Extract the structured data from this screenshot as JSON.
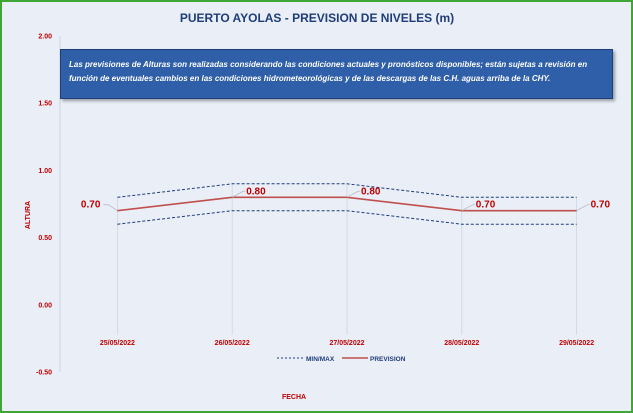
{
  "chart_data": {
    "type": "line",
    "title": "PUERTO AYOLAS - PREVISION DE NIVELES (m)",
    "xlabel": "FECHA",
    "ylabel": "ALTURA",
    "categories": [
      "25/05/2022",
      "26/05/2022",
      "27/05/2022",
      "28/05/2022",
      "29/05/2022"
    ],
    "ylim": [
      -0.5,
      2.0
    ],
    "yticks": [
      "2.00",
      "1.50",
      "1.00",
      "0.50",
      "0.00",
      "-0.50"
    ],
    "series": [
      {
        "name": "PREVISION",
        "values": [
          0.7,
          0.8,
          0.8,
          0.7,
          0.7
        ],
        "labels": [
          "0.70",
          "0.80",
          "0.80",
          "0.70",
          "0.70"
        ],
        "color": "#c0504d",
        "style": "solid"
      },
      {
        "name": "MIN/MAX",
        "role": "max",
        "values": [
          0.8,
          0.9,
          0.9,
          0.8,
          0.8
        ],
        "color": "#1f3d7a",
        "style": "dashed"
      },
      {
        "name": "MIN/MAX",
        "role": "min",
        "values": [
          0.6,
          0.7,
          0.7,
          0.6,
          0.6
        ],
        "color": "#1f3d7a",
        "style": "dashed"
      }
    ],
    "legend": {
      "position": "bottom",
      "entries": [
        "MIN/MAX",
        "PREVISION"
      ]
    },
    "grid": "vertical drop lines at each date",
    "note": "Las previsiones de Alturas son realizadas considerando las condiciones actuales y pronósticos disponibles;  están sujetas a revisión en función de eventuales cambios en las condiciones hidrometeorológicas y de las descargas de las C.H. aguas arriba de la CHY."
  },
  "colors": {
    "background": "#e9eef7",
    "border": "#3fa535",
    "note_bg": "#2f5fa8",
    "text": "#c00000"
  }
}
